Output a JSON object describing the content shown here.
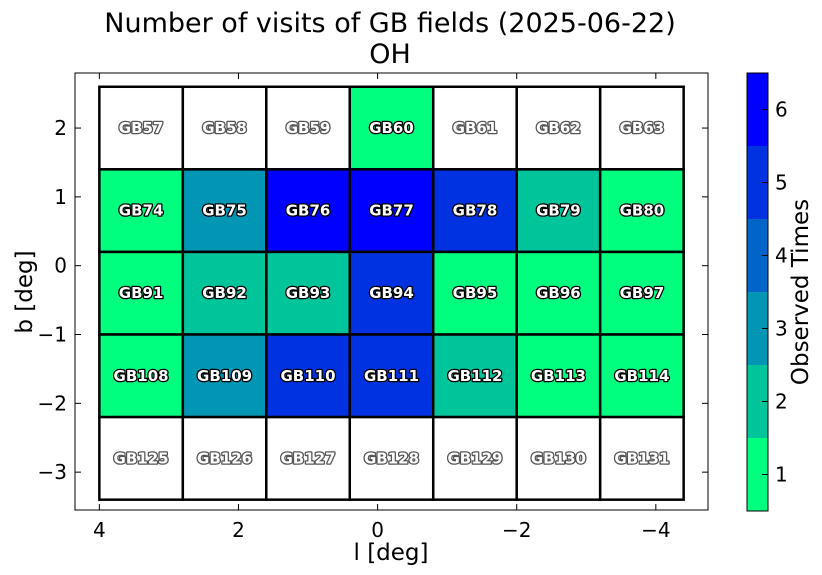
{
  "chart_data": {
    "type": "heatmap",
    "title": "Number of visits of GB fields (2025-06-22)",
    "subtitle": "OH",
    "xlabel": "l [deg]",
    "ylabel": "b [deg]",
    "xlim": [
      4.35,
      -4.75
    ],
    "ylim": [
      -3.55,
      2.8
    ],
    "x_ticks": [
      4,
      2,
      0,
      -2,
      -4
    ],
    "x_tick_labels": [
      "4",
      "2",
      "0",
      "−2",
      "−4"
    ],
    "y_ticks": [
      2,
      1,
      0,
      -1,
      -2,
      -3
    ],
    "y_tick_labels": [
      "2",
      "1",
      "0",
      "−1",
      "−2",
      "−3"
    ],
    "grid": false,
    "field_l_edges": [
      4.0,
      2.8,
      1.6,
      0.4,
      -0.8,
      -2.0,
      -3.2,
      -4.4
    ],
    "field_b_edges": [
      2.6,
      1.4,
      0.2,
      -1.0,
      -2.2,
      -3.4
    ],
    "rows": [
      {
        "fields": [
          "GB57",
          "GB58",
          "GB59",
          "GB60",
          "GB61",
          "GB62",
          "GB63"
        ],
        "visits": [
          0,
          0,
          0,
          1,
          0,
          0,
          0
        ]
      },
      {
        "fields": [
          "GB74",
          "GB75",
          "GB76",
          "GB77",
          "GB78",
          "GB79",
          "GB80"
        ],
        "visits": [
          1,
          3,
          6,
          6,
          5,
          2,
          1
        ]
      },
      {
        "fields": [
          "GB91",
          "GB92",
          "GB93",
          "GB94",
          "GB95",
          "GB96",
          "GB97"
        ],
        "visits": [
          1,
          2,
          2,
          5,
          1,
          1,
          1
        ]
      },
      {
        "fields": [
          "GB108",
          "GB109",
          "GB110",
          "GB111",
          "GB112",
          "GB113",
          "GB114"
        ],
        "visits": [
          1,
          3,
          5,
          5,
          2,
          1,
          1
        ]
      },
      {
        "fields": [
          "GB125",
          "GB126",
          "GB127",
          "GB128",
          "GB129",
          "GB130",
          "GB131"
        ],
        "visits": [
          0,
          0,
          0,
          0,
          0,
          0,
          0
        ]
      }
    ],
    "colorbar": {
      "label": "Observed Times",
      "ticks": [
        1,
        2,
        3,
        4,
        5,
        6
      ],
      "tick_labels": [
        "1",
        "2",
        "3",
        "4",
        "5",
        "6"
      ],
      "range": [
        0.5,
        6.5
      ],
      "colors": [
        "#00ff7f",
        "#00c49a",
        "#0096b4",
        "#0064c8",
        "#0032e1",
        "#0000ff"
      ],
      "zero_color": "#ffffff"
    }
  }
}
